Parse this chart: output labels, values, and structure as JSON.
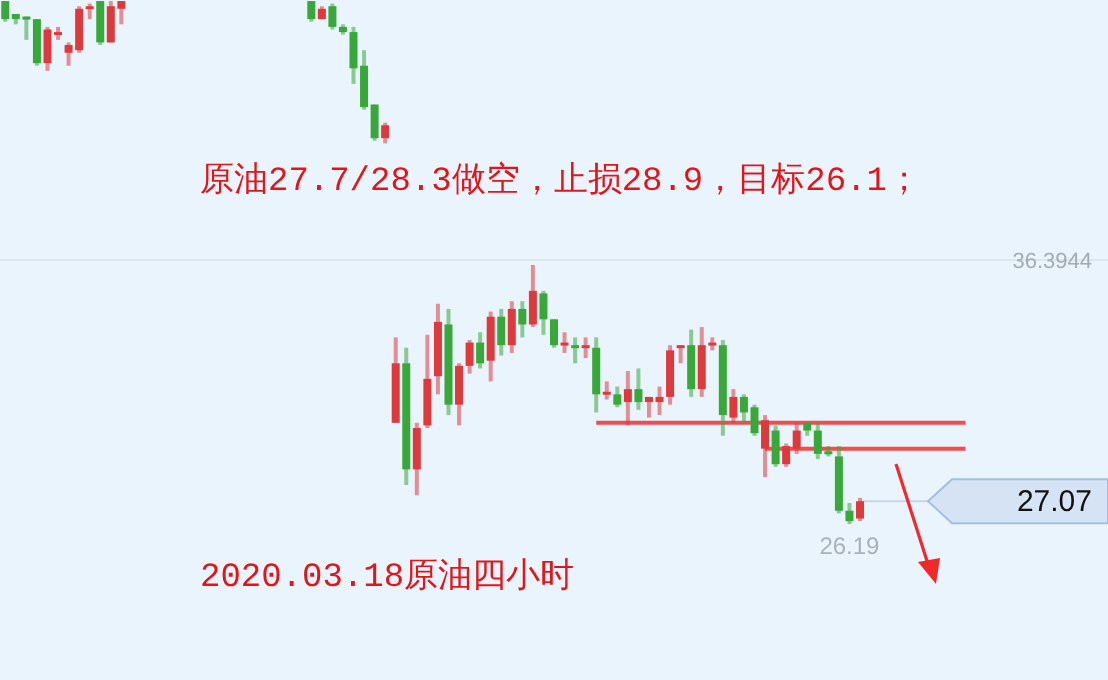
{
  "chart_data": {
    "type": "candlestick",
    "categories": [
      null,
      null,
      null,
      null,
      null,
      null,
      null,
      null,
      null,
      null,
      null,
      null,
      null,
      null,
      null,
      null,
      null,
      null,
      null,
      null,
      null,
      null,
      null,
      null,
      null,
      null,
      null,
      null,
      null,
      null,
      null,
      null,
      null,
      null,
      null,
      null,
      null,
      null,
      null,
      null,
      null,
      null,
      null,
      null,
      null,
      null,
      null,
      null,
      null,
      null,
      null,
      null,
      null,
      null,
      null,
      null,
      null,
      null,
      null,
      null,
      null,
      null,
      null,
      null,
      null,
      null,
      null,
      null,
      null,
      null,
      null,
      null,
      null,
      null,
      null,
      null,
      null,
      null,
      null,
      null,
      null,
      null,
      null,
      null,
      null,
      null,
      null,
      null,
      null,
      null,
      null,
      null,
      null,
      null,
      null,
      null,
      null,
      null,
      null,
      null,
      null,
      null,
      null,
      null,
      null
    ],
    "ohlc": [
      [
        46.4,
        46.4,
        45.6,
        45.7
      ],
      [
        45.9,
        45.9,
        45.5,
        45.7
      ],
      [
        45.8,
        45.8,
        44.9,
        45.7
      ],
      [
        45.7,
        45.7,
        43.9,
        44.0
      ],
      [
        44.0,
        45.4,
        43.7,
        45.3
      ],
      [
        45.1,
        45.4,
        44.9,
        45.2
      ],
      [
        44.4,
        44.8,
        43.9,
        44.7
      ],
      [
        44.5,
        46.2,
        44.4,
        46.1
      ],
      [
        46.1,
        46.3,
        45.7,
        46.2
      ],
      [
        46.4,
        46.4,
        44.7,
        44.8
      ],
      [
        44.8,
        46.4,
        44.8,
        46.2
      ],
      [
        46.1,
        46.4,
        45.5,
        46.4
      ],
      null,
      null,
      null,
      null,
      null,
      null,
      null,
      null,
      null,
      null,
      null,
      null,
      null,
      null,
      null,
      null,
      null,
      [
        46.4,
        46.4,
        45.6,
        45.7
      ],
      [
        45.7,
        46.2,
        45.7,
        46.1
      ],
      [
        46.2,
        46.3,
        45.3,
        45.4
      ],
      [
        45.4,
        45.5,
        45.1,
        45.2
      ],
      [
        45.2,
        45.4,
        43.2,
        43.8
      ],
      [
        43.9,
        44.5,
        42.2,
        42.3
      ],
      [
        42.4,
        42.4,
        41.0,
        41.1
      ],
      [
        41.1,
        41.7,
        40.9,
        41.6
      ],
      [
        30.1,
        33.4,
        30.1,
        32.4
      ],
      [
        32.4,
        33.0,
        27.7,
        28.3
      ],
      [
        28.3,
        30.1,
        27.3,
        29.9
      ],
      [
        30.0,
        33.5,
        29.9,
        31.8
      ],
      [
        31.9,
        34.7,
        31.2,
        34.0
      ],
      [
        33.9,
        34.5,
        30.4,
        30.8
      ],
      [
        30.8,
        32.4,
        30.0,
        32.3
      ],
      [
        32.3,
        33.3,
        32.0,
        33.2
      ],
      [
        33.2,
        33.6,
        32.2,
        32.4
      ],
      [
        32.5,
        34.4,
        31.7,
        34.2
      ],
      [
        34.2,
        34.5,
        32.7,
        33.1
      ],
      [
        33.1,
        34.8,
        32.8,
        34.5
      ],
      [
        34.5,
        34.8,
        33.4,
        33.9
      ],
      [
        33.9,
        36.2,
        33.8,
        35.2
      ],
      [
        35.1,
        35.2,
        33.5,
        34.1
      ],
      [
        34.1,
        34.1,
        33.0,
        33.1
      ],
      [
        33.1,
        33.6,
        32.8,
        33.2
      ],
      [
        33.1,
        33.4,
        32.4,
        33.0
      ],
      [
        33.0,
        33.4,
        32.6,
        33.1
      ],
      [
        33.0,
        33.4,
        30.5,
        31.2
      ],
      [
        31.2,
        31.7,
        31.0,
        31.3
      ],
      [
        31.2,
        31.5,
        30.7,
        30.8
      ],
      [
        30.9,
        32.1,
        30.0,
        31.4
      ],
      [
        31.4,
        32.2,
        30.6,
        30.9
      ],
      [
        30.9,
        31.1,
        30.3,
        31.1
      ],
      [
        30.9,
        31.5,
        30.4,
        31.1
      ],
      [
        31.1,
        33.1,
        30.8,
        32.9
      ],
      [
        33.0,
        33.1,
        32.4,
        33.1
      ],
      [
        33.1,
        33.7,
        31.1,
        31.4
      ],
      [
        31.4,
        33.8,
        31.1,
        33.1
      ],
      [
        33.1,
        33.4,
        32.9,
        33.2
      ],
      [
        33.1,
        33.3,
        29.6,
        30.4
      ],
      [
        30.3,
        31.4,
        30.1,
        31.1
      ],
      [
        31.1,
        31.2,
        30.1,
        30.5
      ],
      [
        30.7,
        30.8,
        29.6,
        29.7
      ],
      [
        29.1,
        30.4,
        28.0,
        30.2
      ],
      [
        29.8,
        30.0,
        28.4,
        28.5
      ],
      [
        28.5,
        29.3,
        28.4,
        29.2
      ],
      [
        29.1,
        30.1,
        28.9,
        29.8
      ],
      [
        30.1,
        30.1,
        29.6,
        29.8
      ],
      [
        29.8,
        30.1,
        28.7,
        28.9
      ],
      [
        29.0,
        29.2,
        28.8,
        28.9
      ],
      [
        28.8,
        29.2,
        26.6,
        26.7
      ],
      [
        26.7,
        27.0,
        26.19,
        26.3
      ],
      [
        26.4,
        27.2,
        26.3,
        27.07
      ],
      null,
      null,
      null,
      null,
      null,
      null,
      null,
      null,
      null,
      null,
      null,
      null,
      null,
      null,
      null,
      null,
      null,
      null,
      null,
      null,
      null,
      null,
      null
    ],
    "ylim": [
      20.16,
      46.44
    ],
    "yticks": [
      {
        "value": 36.3944,
        "label": "36.3944"
      },
      {
        "value": 27.07,
        "label": "27.07"
      }
    ],
    "grid": "y",
    "series": [
      {
        "type": "line",
        "color": "#f03c3c",
        "values": [
          null,
          null,
          null,
          null,
          null,
          null,
          null,
          null,
          null,
          null,
          null,
          null,
          null,
          null,
          null,
          null,
          null,
          null,
          null,
          null,
          null,
          null,
          null,
          null,
          null,
          null,
          null,
          null,
          null,
          null,
          null,
          null,
          null,
          null,
          null,
          null,
          null,
          null,
          null,
          null,
          null,
          null,
          null,
          null,
          null,
          null,
          null,
          null,
          null,
          null,
          null,
          null,
          null,
          null,
          null,
          null,
          30.1,
          30.1,
          30.1,
          30.1,
          30.1,
          30.1,
          30.1,
          30.1,
          30.1,
          30.1,
          30.1,
          30.1,
          30.1,
          30.1,
          30.1,
          30.1,
          30.1,
          30.1,
          30.1,
          30.1,
          30.1,
          30.1,
          30.1,
          30.1,
          30.1,
          30.1,
          30.1,
          30.1,
          30.1,
          30.1,
          30.1,
          30.1,
          30.1,
          30.1,
          30.1,
          30.1,
          null,
          null,
          null,
          null,
          null,
          null,
          null,
          null,
          null,
          null,
          null,
          null,
          null
        ]
      },
      {
        "type": "line",
        "color": "#f03c3c",
        "values": [
          null,
          null,
          null,
          null,
          null,
          null,
          null,
          null,
          null,
          null,
          null,
          null,
          null,
          null,
          null,
          null,
          null,
          null,
          null,
          null,
          null,
          null,
          null,
          null,
          null,
          null,
          null,
          null,
          null,
          null,
          null,
          null,
          null,
          null,
          null,
          null,
          null,
          null,
          null,
          null,
          null,
          null,
          null,
          null,
          null,
          null,
          null,
          null,
          null,
          null,
          null,
          null,
          null,
          null,
          null,
          null,
          null,
          null,
          null,
          null,
          null,
          null,
          null,
          null,
          null,
          null,
          null,
          null,
          null,
          null,
          null,
          null,
          29.1,
          29.1,
          29.1,
          29.1,
          29.1,
          29.1,
          29.1,
          29.1,
          29.1,
          29.1,
          29.1,
          29.1,
          29.1,
          29.1,
          29.1,
          29.1,
          29.1,
          29.1,
          29.1,
          29.1,
          null,
          null,
          null,
          null,
          null,
          null,
          null,
          null,
          null,
          null,
          null,
          null,
          null
        ]
      }
    ],
    "annotations": [
      "原油27.7/28.3做空，止损28.9，目标26.1；",
      "2020.03.18原油四小时",
      {
        "text": "26.19",
        "y": 26.19
      }
    ]
  }
}
